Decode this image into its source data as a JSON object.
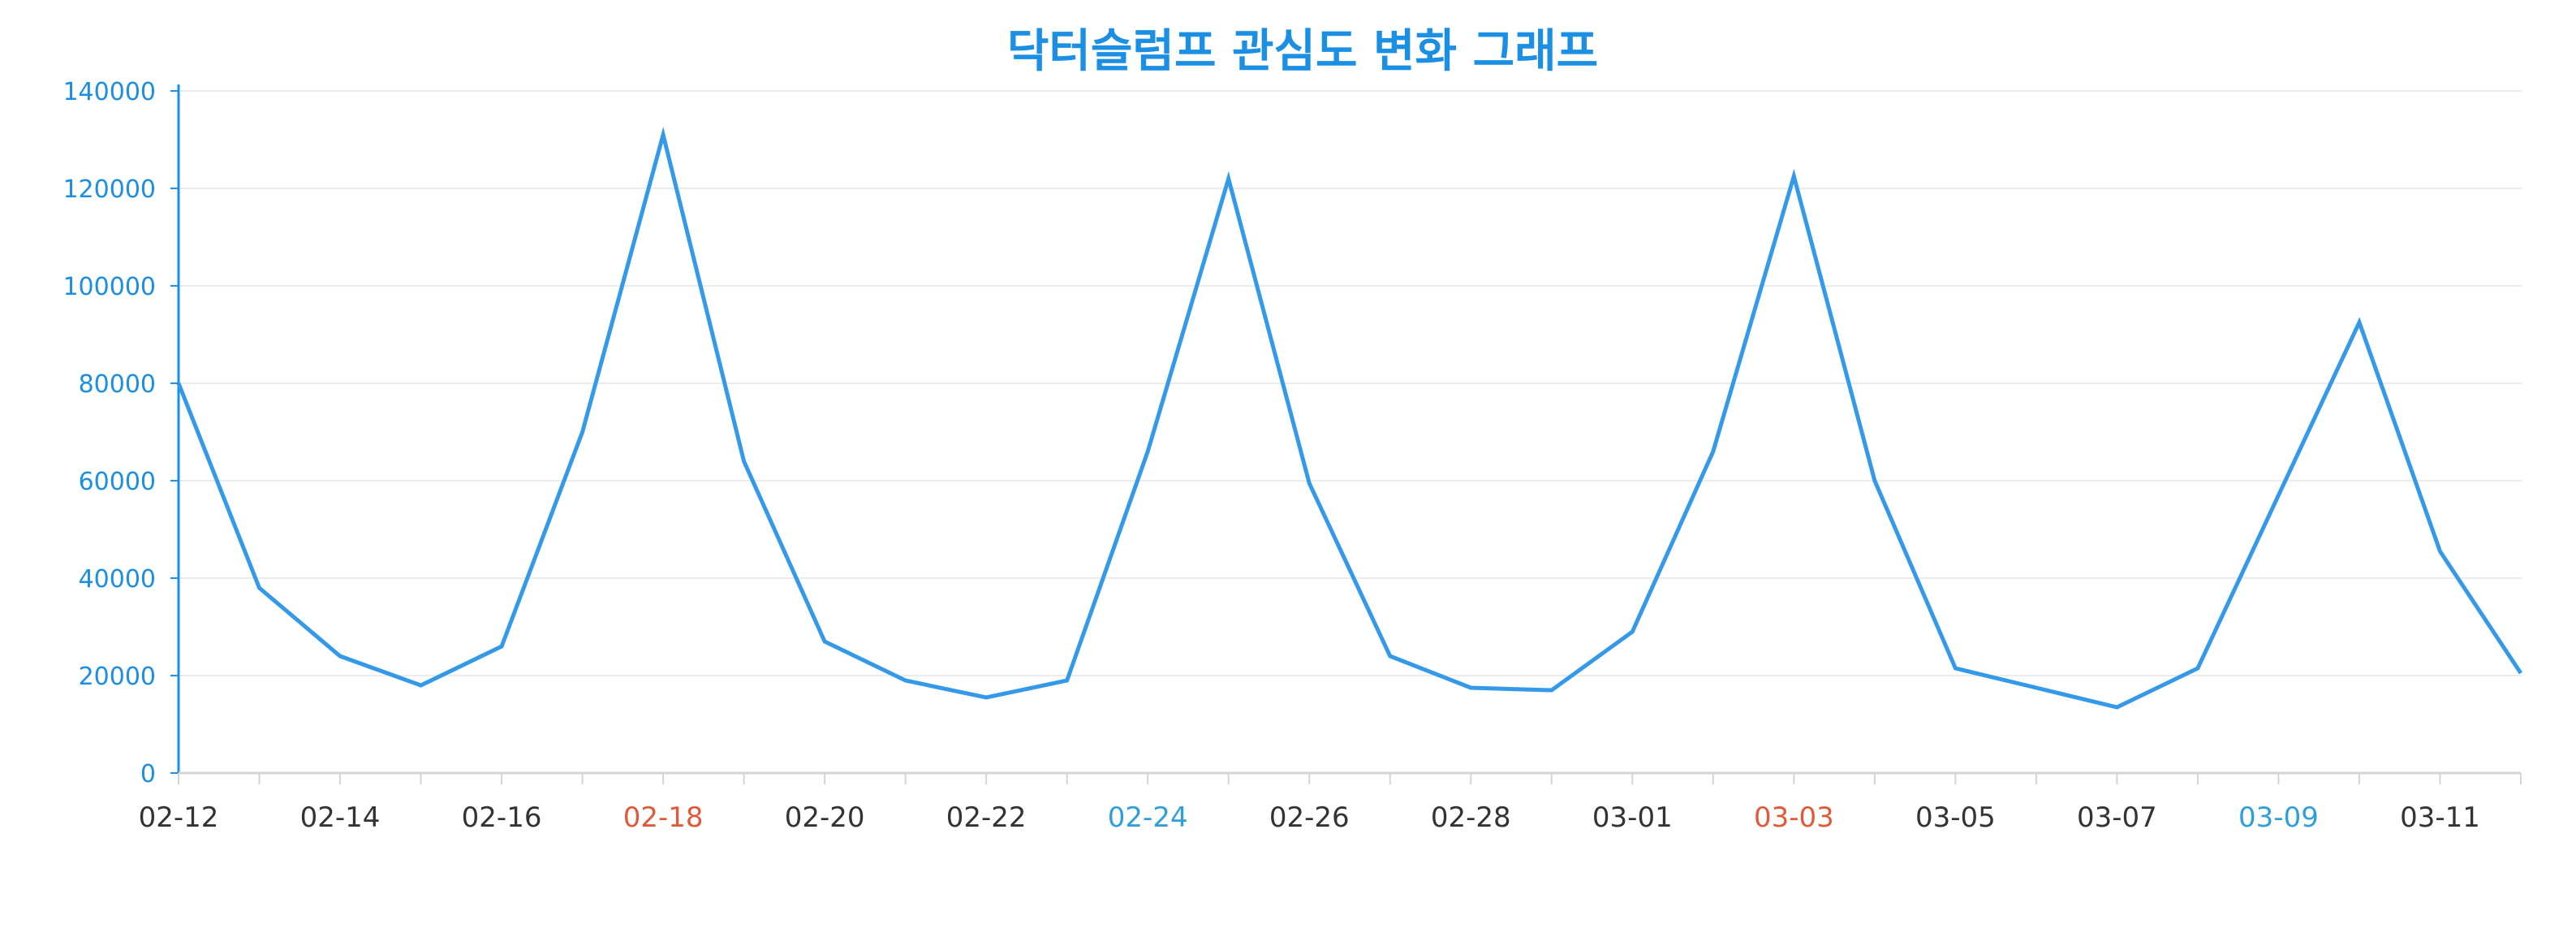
{
  "colors": {
    "line": "#3399e8",
    "title": "#1a8fe3",
    "axis": "#1a8fe3",
    "y_tick_text": "#1a8fe3",
    "grid": "#ececec",
    "x_axis_line": "#d4d4d4",
    "x_tick_text_default": "#333333",
    "x_tick_text_holiday": "#e05a3a",
    "x_tick_text_weekend": "#2f9fd8"
  },
  "chart_data": {
    "type": "line",
    "title": "닥터슬럼프 관심도 변화 그래프",
    "xlabel": "",
    "ylabel": "",
    "ylim": [
      0,
      140000
    ],
    "grid": true,
    "y_ticks": [
      0,
      20000,
      40000,
      60000,
      80000,
      100000,
      120000,
      140000
    ],
    "y_tick_labels": [
      "0",
      "20000",
      "40000",
      "60000",
      "80000",
      "100000",
      "120000",
      "140000"
    ],
    "x": [
      "02-12",
      "02-13",
      "02-14",
      "02-15",
      "02-16",
      "02-17",
      "02-18",
      "02-19",
      "02-20",
      "02-21",
      "02-22",
      "02-23",
      "02-24",
      "02-25",
      "02-26",
      "02-27",
      "02-28",
      "02-29",
      "03-01",
      "03-02",
      "03-03",
      "03-04",
      "03-05",
      "03-06",
      "03-07",
      "03-08",
      "03-09",
      "03-10",
      "03-11",
      "03-12"
    ],
    "x_tick_labels": [
      {
        "label": "02-12",
        "style": "default"
      },
      {
        "label": "02-14",
        "style": "default"
      },
      {
        "label": "02-16",
        "style": "default"
      },
      {
        "label": "02-18",
        "style": "holiday"
      },
      {
        "label": "02-20",
        "style": "default"
      },
      {
        "label": "02-22",
        "style": "default"
      },
      {
        "label": "02-24",
        "style": "weekend"
      },
      {
        "label": "02-26",
        "style": "default"
      },
      {
        "label": "02-28",
        "style": "default"
      },
      {
        "label": "03-01",
        "style": "default"
      },
      {
        "label": "03-03",
        "style": "holiday"
      },
      {
        "label": "03-05",
        "style": "default"
      },
      {
        "label": "03-07",
        "style": "default"
      },
      {
        "label": "03-09",
        "style": "weekend"
      },
      {
        "label": "03-11",
        "style": "default"
      }
    ],
    "series": [
      {
        "values": [
          80000,
          38000,
          24000,
          18000,
          26000,
          70000,
          131000,
          64000,
          27000,
          19000,
          15500,
          19000,
          66000,
          122000,
          59500,
          24000,
          17500,
          17000,
          29000,
          66000,
          122500,
          60000,
          21500,
          17500,
          13500,
          21500,
          57000,
          92500,
          45500,
          20500
        ]
      }
    ]
  }
}
